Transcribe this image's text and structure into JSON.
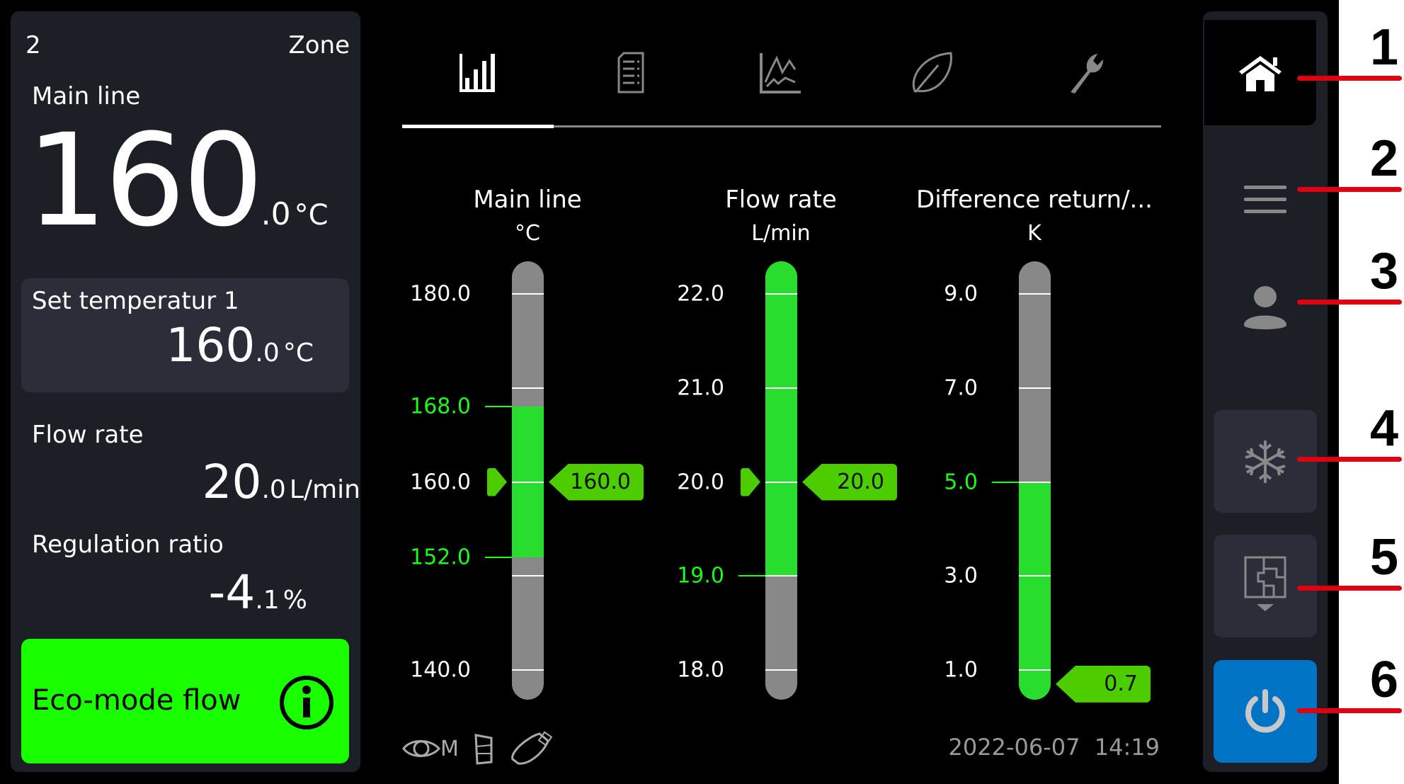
{
  "zone": {
    "number": "2",
    "label": "Zone"
  },
  "main_line": {
    "label": "Main line",
    "int": "160",
    "dec": ".0",
    "unit": "°C"
  },
  "set_temp": {
    "label": "Set temperatur 1",
    "int": "160",
    "dec": ".0",
    "unit": "°C"
  },
  "flow_rate": {
    "label": "Flow rate",
    "int": "20",
    "dec": ".0",
    "unit": "L/min"
  },
  "regulation": {
    "label": "Regulation ratio",
    "int": "-4",
    "dec": ".1",
    "unit": "%"
  },
  "eco": {
    "label": "Eco-mode flow",
    "icon": "info-icon",
    "color": "#1aff00"
  },
  "tabs": [
    {
      "icon": "bar-chart-icon",
      "active": true
    },
    {
      "icon": "document-list-icon"
    },
    {
      "icon": "line-chart-icon"
    },
    {
      "icon": "leaf-icon"
    },
    {
      "icon": "wrench-icon"
    }
  ],
  "gauges": [
    {
      "title": "Main line",
      "unit": "°C",
      "min": 140,
      "max": 180,
      "ticks": [
        180,
        170,
        160,
        150,
        140
      ],
      "labels": [
        {
          "t": "180.0",
          "v": 180
        },
        {
          "t": "168.0",
          "v": 168,
          "limit": true
        },
        {
          "t": "160.0",
          "v": 160
        },
        {
          "t": "152.0",
          "v": 152,
          "limit": true
        },
        {
          "t": "140.0",
          "v": 140
        }
      ],
      "band": [
        152,
        168
      ],
      "value": 160,
      "value_text": "160.0",
      "setpoint": 160
    },
    {
      "title": "Flow rate",
      "unit": "L/min",
      "min": 18,
      "max": 22,
      "ticks": [
        22,
        21,
        20,
        19,
        18
      ],
      "labels": [
        {
          "t": "22.0",
          "v": 22
        },
        {
          "t": "21.0",
          "v": 21
        },
        {
          "t": "20.0",
          "v": 20
        },
        {
          "t": "19.0",
          "v": 19,
          "limit": true
        },
        {
          "t": "18.0",
          "v": 18
        }
      ],
      "band": [
        19,
        null
      ],
      "value": 20,
      "value_text": "20.0",
      "setpoint": 20
    },
    {
      "title": "Difference return/...",
      "unit": "K",
      "min": 1,
      "max": 9,
      "ticks": [
        9,
        7,
        5,
        3,
        1
      ],
      "labels": [
        {
          "t": "9.0",
          "v": 9
        },
        {
          "t": "7.0",
          "v": 7
        },
        {
          "t": "5.0",
          "v": 5,
          "limit": true
        },
        {
          "t": "3.0",
          "v": 3
        },
        {
          "t": "1.0",
          "v": 1
        }
      ],
      "band": [
        null,
        5
      ],
      "value": 0.7,
      "value_text": "0.7",
      "setpoint": null
    }
  ],
  "footer": {
    "mode_label": "M",
    "date": "2022-06-07",
    "time": "14:19"
  },
  "sidebar": [
    {
      "icon": "home-icon",
      "active": true
    },
    {
      "icon": "menu-icon"
    },
    {
      "icon": "user-icon"
    },
    {
      "icon": "snowflake-icon"
    },
    {
      "icon": "flow-diagram-icon"
    },
    {
      "icon": "power-icon",
      "color": "#0073c4"
    }
  ],
  "callouts": [
    "1",
    "2",
    "3",
    "4",
    "5",
    "6"
  ],
  "colors": {
    "green_band": "#28dd2e",
    "limit": "#1aff1a",
    "badge": "#4ccd00",
    "panel": "#1c1f26"
  }
}
